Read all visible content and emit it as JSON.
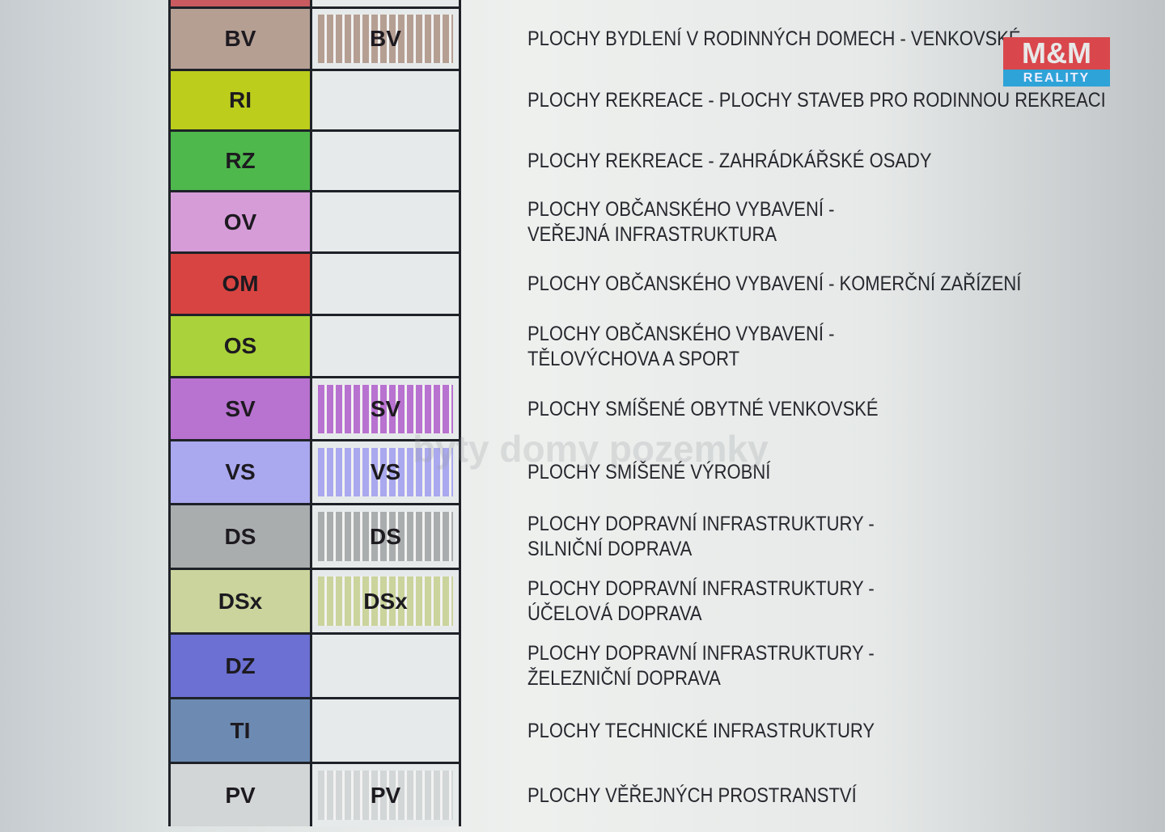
{
  "rows": [
    {
      "code": "",
      "color": "#c85a60",
      "hatched": false,
      "description": ""
    },
    {
      "code": "BV",
      "color": "#b59f93",
      "hatched": true,
      "description": "PLOCHY BYDLENÍ V RODINNÝCH DOMECH - VENKOVSKÉ"
    },
    {
      "code": "RI",
      "color": "#bccd1c",
      "hatched": false,
      "description": "PLOCHY REKREACE - PLOCHY STAVEB PRO RODINNOU REKREACI"
    },
    {
      "code": "RZ",
      "color": "#4eb84c",
      "hatched": false,
      "description": "PLOCHY REKREACE - ZAHRÁDKÁŘSKÉ OSADY"
    },
    {
      "code": "OV",
      "color": "#d69cd8",
      "hatched": false,
      "description": "PLOCHY OBČANSKÉHO VYBAVENÍ -\nVEŘEJNÁ INFRASTRUKTURA"
    },
    {
      "code": "OM",
      "color": "#d84441",
      "hatched": false,
      "description": "PLOCHY OBČANSKÉHO VYBAVENÍ - KOMERČNÍ ZAŘÍZENÍ"
    },
    {
      "code": "OS",
      "color": "#aad23a",
      "hatched": false,
      "description": "PLOCHY OBČANSKÉHO VYBAVENÍ -\nTĚLOVÝCHOVA A SPORT"
    },
    {
      "code": "SV",
      "color": "#b872d0",
      "hatched": true,
      "description": "PLOCHY SMÍŠENÉ OBYTNÉ VENKOVSKÉ"
    },
    {
      "code": "VS",
      "color": "#aaa8ee",
      "hatched": true,
      "description": "PLOCHY SMÍŠENÉ VÝROBNÍ"
    },
    {
      "code": "DS",
      "color": "#aaadae",
      "hatched": true,
      "description": "PLOCHY DOPRAVNÍ INFRASTRUKTURY -\nSILNIČNÍ DOPRAVA"
    },
    {
      "code": "DSx",
      "color": "#cad49c",
      "hatched": true,
      "description": "PLOCHY DOPRAVNÍ INFRASTRUKTURY -\nÚČELOVÁ DOPRAVA"
    },
    {
      "code": "DZ",
      "color": "#6b70d2",
      "hatched": false,
      "description": "PLOCHY DOPRAVNÍ INFRASTRUKTURY -\nŽELEZNIČNÍ DOPRAVA"
    },
    {
      "code": "TI",
      "color": "#6d8bb2",
      "hatched": false,
      "description": "PLOCHY TECHNICKÉ INFRASTRUKTURY"
    },
    {
      "code": "PV",
      "color": "#d2d6d6",
      "hatched": true,
      "description": "PLOCHY VĚŘEJNÝCH PROSTRANSTVÍ"
    }
  ],
  "logo": {
    "top": "M&M",
    "bottom": "REALITY"
  },
  "watermark": "byty domy pozemky"
}
